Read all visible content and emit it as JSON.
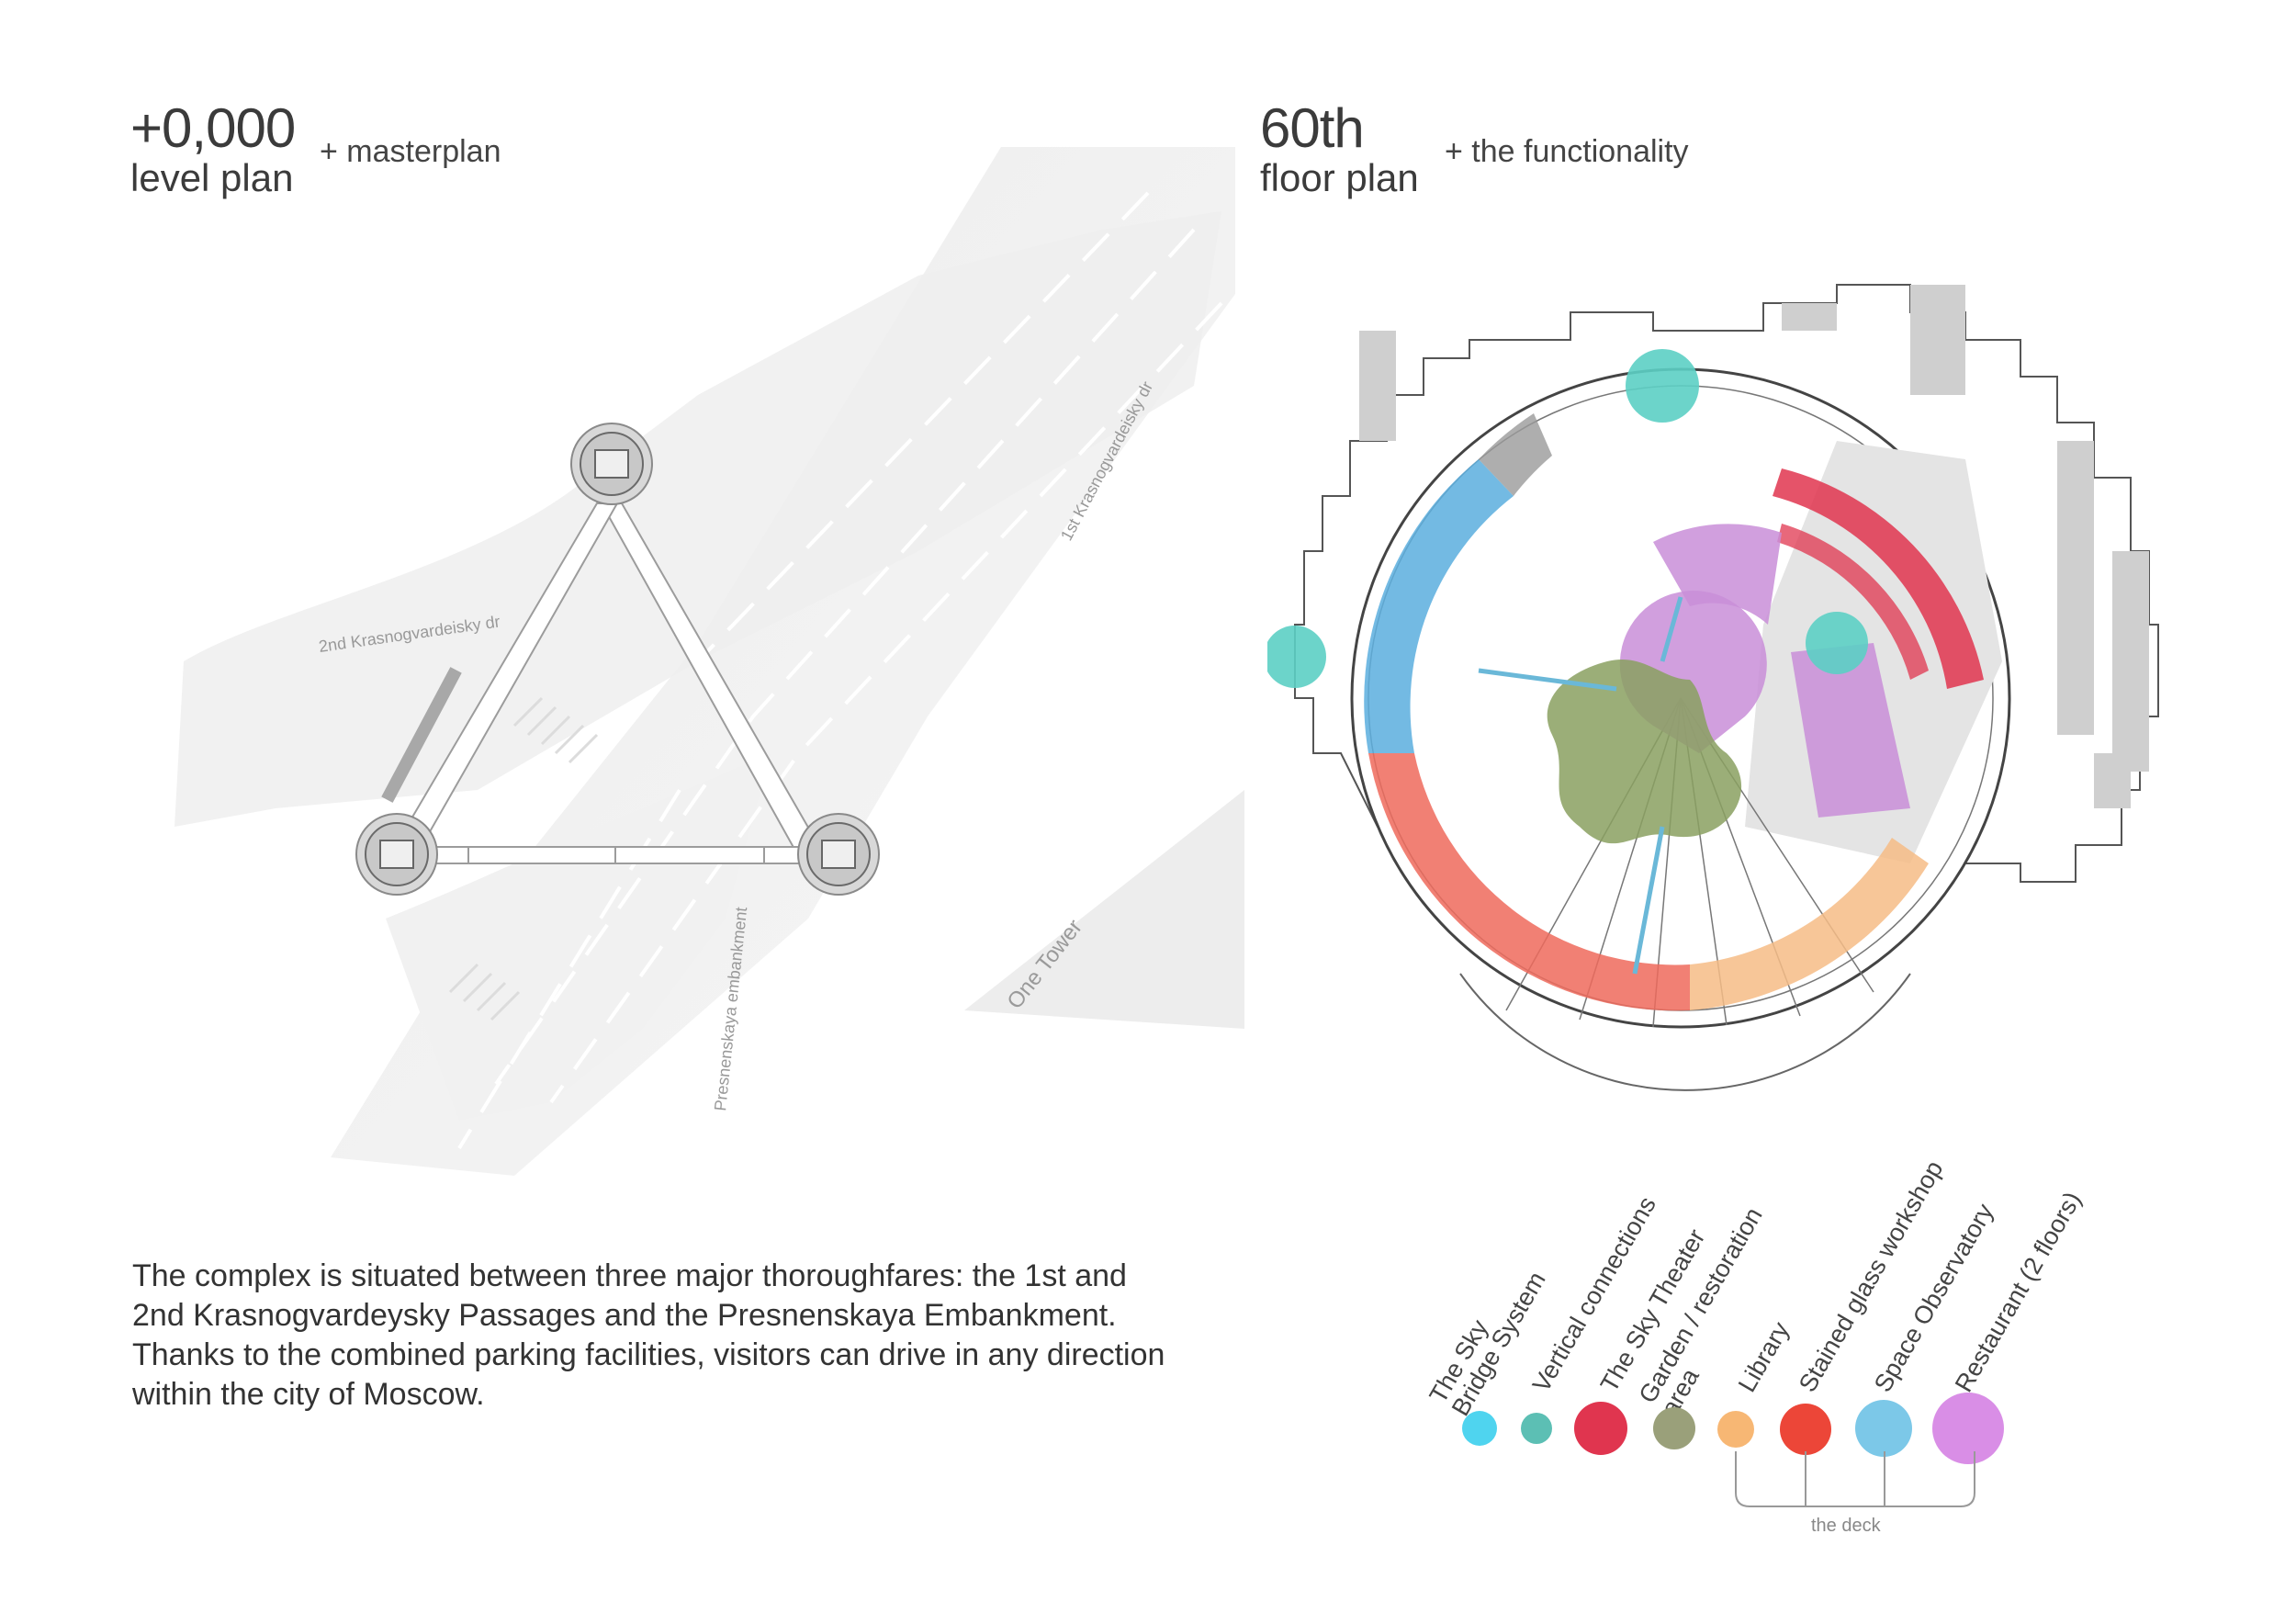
{
  "left": {
    "level": "+0,000",
    "level_sub": "level plan",
    "tag": "+ masterplan",
    "streets": {
      "first": "1st Krasnogvardeisky dr",
      "second": "2nd Krasnogvardeisky dr",
      "embankment": "Presnenskaya embankment",
      "tower": "One Tower"
    },
    "description": [
      "The complex is situated between three major thoroughfares: the 1st and",
      "2nd Krasnogvardeysky Passages and the Presnenskaya Embankment.",
      "Thanks to the combined parking facilities, visitors can drive in any direction",
      "within the city of Moscow."
    ]
  },
  "right": {
    "floor": "60th",
    "floor_sub": "floor plan",
    "tag": "+ the functionality"
  },
  "legend": {
    "items": [
      {
        "label": [
          "The Sky",
          "Bridge System"
        ],
        "color": "#4fd4ef"
      },
      {
        "label": [
          "Vertical connections"
        ],
        "color": "#5cbfb4"
      },
      {
        "label": [
          "The Sky Theater"
        ],
        "color": "#e0354f"
      },
      {
        "label": [
          "Garden / restoration",
          "area"
        ],
        "color": "#9aa07a"
      },
      {
        "label": [
          "Library"
        ],
        "color": "#f7b774"
      },
      {
        "label": [
          "Stained glass workshop"
        ],
        "color": "#ec4638"
      },
      {
        "label": [
          "Space Observatory"
        ],
        "color": "#7cc8e8"
      },
      {
        "label": [
          "Restaurant (2 floors)"
        ],
        "color": "#d98ee6"
      }
    ],
    "bracket_label": "the deck"
  }
}
